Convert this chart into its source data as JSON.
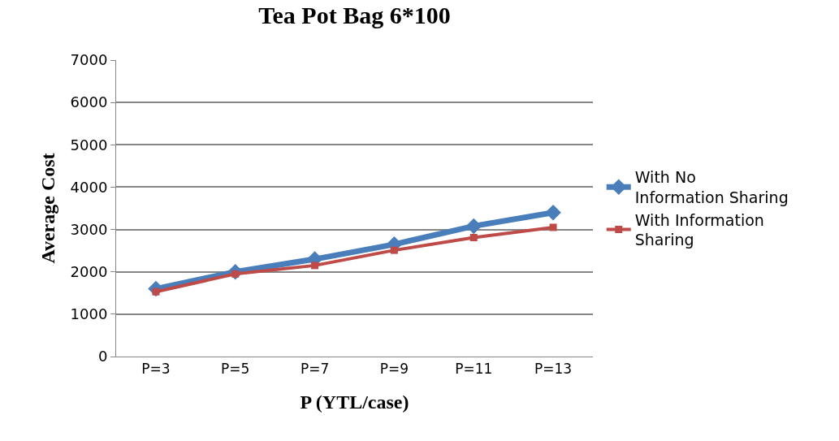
{
  "chart_data": {
    "type": "line",
    "title": "Tea Pot Bag 6*100",
    "xlabel": "P (YTL/case)",
    "ylabel": "Average Cost",
    "categories": [
      "P=3",
      "P=5",
      "P=7",
      "P=9",
      "P=11",
      "P=13"
    ],
    "series": [
      {
        "name": "With No Information Sharing",
        "color": "#4a7ebb",
        "marker": "diamond",
        "values": [
          1600,
          2000,
          2300,
          2650,
          3080,
          3400
        ]
      },
      {
        "name": "With Information Sharing",
        "color": "#be4b48",
        "marker": "square",
        "values": [
          1530,
          1950,
          2150,
          2510,
          2810,
          3050
        ]
      }
    ],
    "ylim": [
      0,
      7000
    ],
    "yticks": [
      0,
      1000,
      2000,
      3000,
      4000,
      5000,
      6000,
      7000
    ],
    "grid": "y",
    "legend": "right",
    "line_style": "solid"
  }
}
